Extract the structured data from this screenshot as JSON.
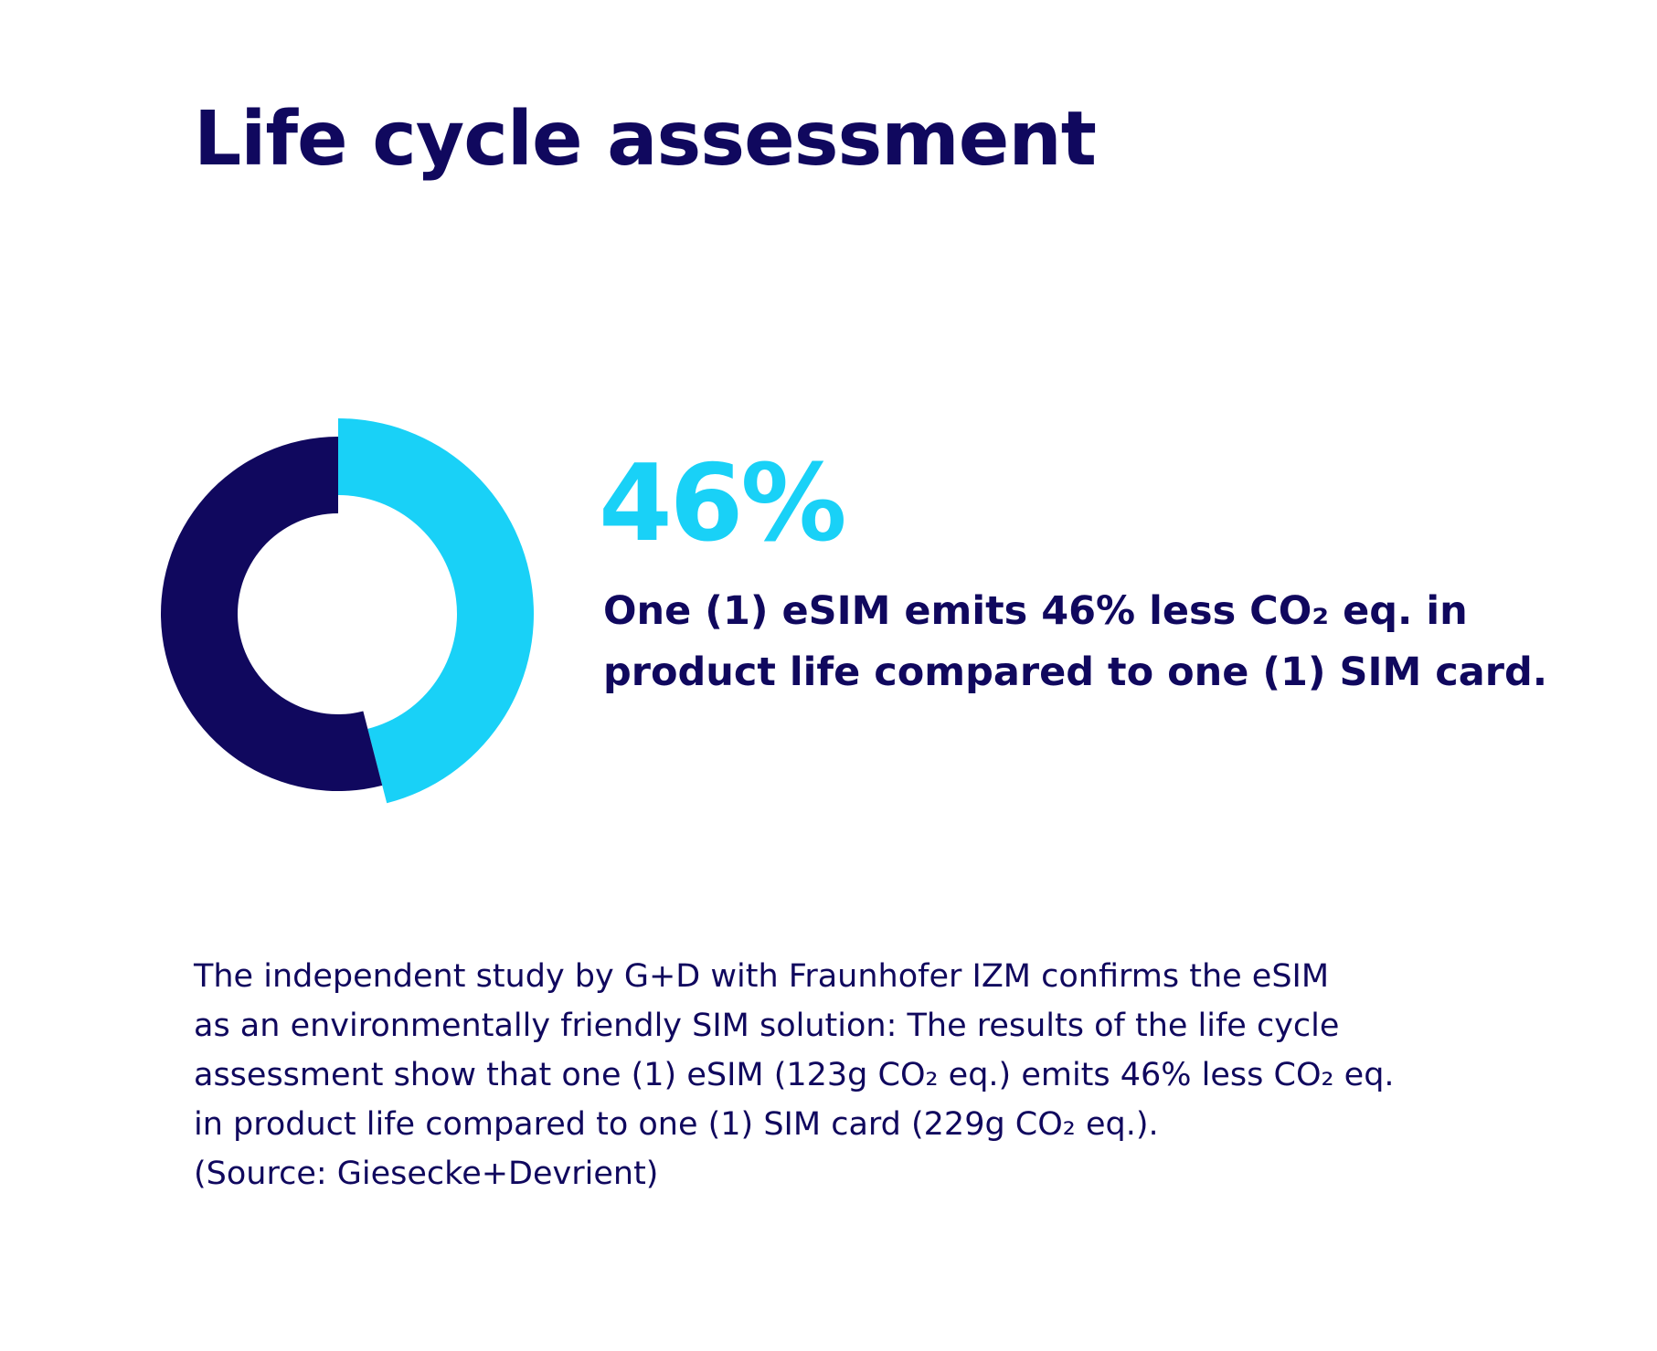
{
  "title": "Life cycle assessment",
  "chart_data": {
    "type": "pie",
    "variant": "donut",
    "slices": [
      {
        "value": 46,
        "color": "#19d1f7",
        "exploded": true
      },
      {
        "value": 54,
        "color": "#10085e",
        "exploded": false
      }
    ],
    "start_angle_deg": 0,
    "direction": "clockwise"
  },
  "highlight": {
    "value": "46%",
    "color": "#19d1f7"
  },
  "statement": {
    "lines": [
      "One (1) eSIM emits 46% less CO₂ eq. in",
      "product life compared to one (1) SIM card."
    ]
  },
  "body": {
    "lines": [
      "The independent study by G+D with Fraunhofer IZM confirms the eSIM",
      "as an environmentally friendly SIM solution: The results of the life cycle",
      "assessment show that one (1) eSIM (123g CO₂ eq.) emits 46% less CO₂ eq.",
      "in product life compared to one (1) SIM card (229g CO₂ eq.).",
      "(Source: Giesecke+Devrient)"
    ]
  },
  "colors": {
    "navy": "#10085e",
    "cyan": "#19d1f7",
    "background": "#ffffff"
  }
}
